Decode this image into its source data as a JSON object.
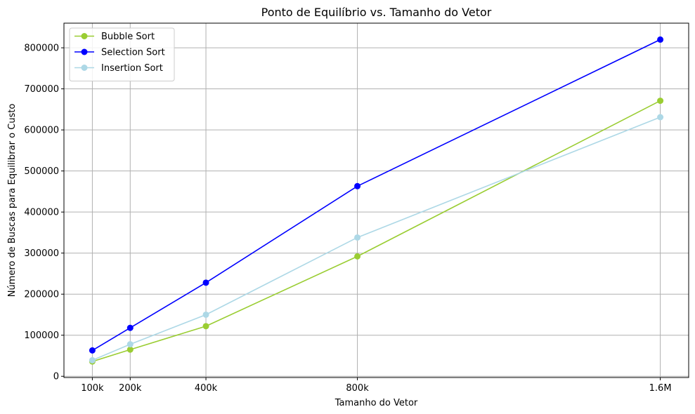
{
  "chart_data": {
    "type": "line",
    "title": "Ponto de Equilíbrio vs. Tamanho do Vetor",
    "xlabel": "Tamanho do Vetor",
    "ylabel": "Número de Buscas para Equilibrar o Custo",
    "x": [
      100000,
      200000,
      400000,
      800000,
      1600000
    ],
    "xticks": [
      {
        "value": 100000,
        "label": "100k"
      },
      {
        "value": 200000,
        "label": "200k"
      },
      {
        "value": 400000,
        "label": "400k"
      },
      {
        "value": 800000,
        "label": "800k"
      },
      {
        "value": 1600000,
        "label": "1.6M"
      }
    ],
    "yticks": [
      0,
      100000,
      200000,
      300000,
      400000,
      500000,
      600000,
      700000,
      800000
    ],
    "xlim": [
      25000,
      1675000
    ],
    "ylim": [
      -3000,
      860000
    ],
    "grid": true,
    "legend_position": "top-left",
    "series": [
      {
        "name": "Bubble Sort",
        "color": "#9acd32",
        "values": [
          36000,
          65000,
          122000,
          292000,
          671000
        ]
      },
      {
        "name": "Selection Sort",
        "color": "#0000ff",
        "values": [
          63000,
          118000,
          228000,
          463000,
          820000
        ]
      },
      {
        "name": "Insertion Sort",
        "color": "#add8e6",
        "values": [
          39000,
          78000,
          150000,
          338000,
          631000
        ]
      }
    ]
  }
}
